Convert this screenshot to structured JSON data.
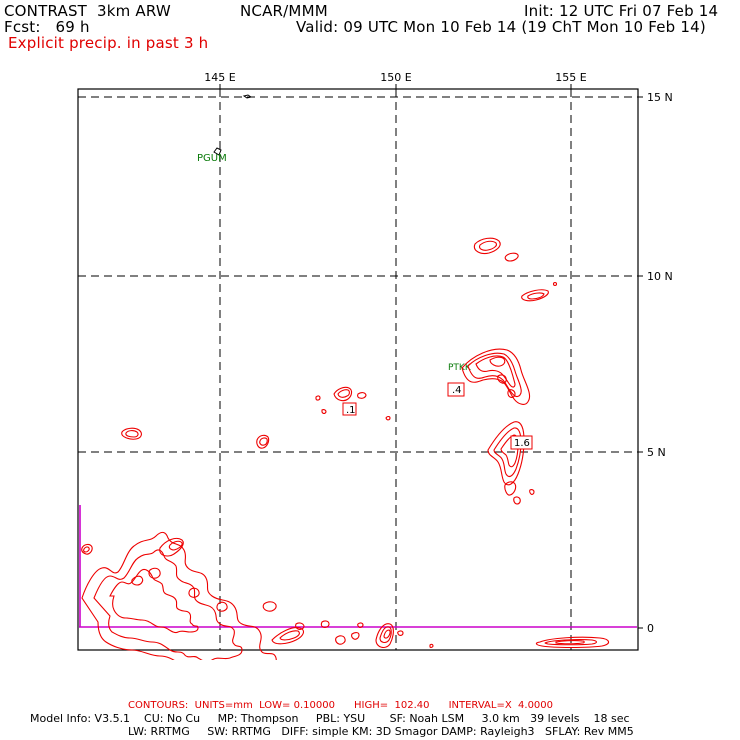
{
  "header": {
    "model": "CONTRAST  3km ARW",
    "center": "NCAR/MMM",
    "init": "Init: 12 UTC Fri 07 Feb 14",
    "fcst": "Fcst:   69 h",
    "valid": "Valid: 09 UTC Mon 10 Feb 14 (19 ChT Mon 10 Feb 14)",
    "field": "Explicit precip. in past 3 h"
  },
  "map": {
    "lon_labels": [
      "145 E",
      "150 E",
      "155 E"
    ],
    "lat_labels": [
      "15 N",
      "10 N",
      "5 N",
      "0"
    ],
    "stations": [
      "PGUM",
      "PTKK"
    ],
    "max_labels": [
      ".1",
      ".4",
      "1.6"
    ],
    "colors": {
      "contour": "#ee0000",
      "grid": "#000000",
      "station": "#0a7a0a",
      "boundary": "#cc00cc"
    }
  },
  "footer": {
    "contours": "CONTOURS:  UNITS=mm  LOW= 0.10000      HIGH=  102.40      INTERVAL=X  4.0000",
    "model_info_1": "Model Info: V3.5.1    CU: No Cu     MP: Thompson     PBL: YSU       SF: Noah LSM     3.0 km   39 levels    18 sec",
    "model_info_2": "LW: RRTMG     SW: RRTMG   DIFF: simple KM: 3D Smagor DAMP: Rayleigh3   SFLAY: Rev MM5"
  }
}
